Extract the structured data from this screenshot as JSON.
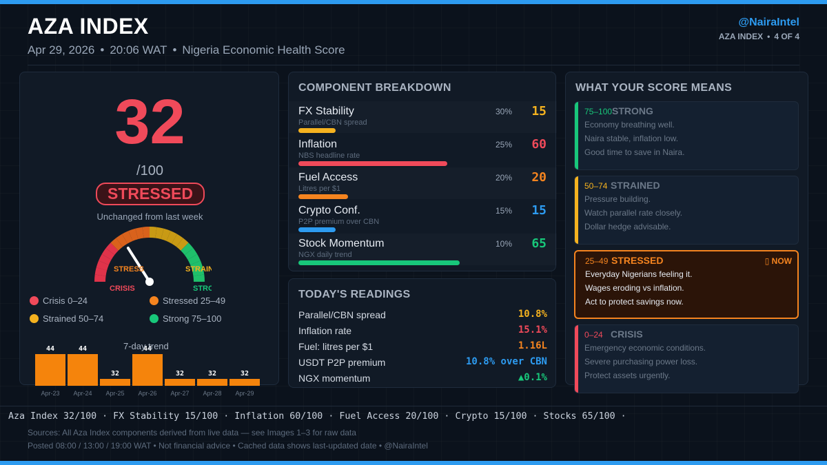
{
  "header": {
    "title": "AZA INDEX",
    "date": "Apr 29, 2026",
    "time": "20:06 WAT",
    "tagline": "Nigeria Economic Health Score",
    "handle": "@NairaIntel",
    "page_label": "AZA INDEX",
    "page_count": "4 OF 4"
  },
  "score_card": {
    "score": "32",
    "out_of": "/100",
    "status": "STRESSED",
    "change_note": "Unchanged from last week",
    "gauge": {
      "value": 32,
      "max": 100,
      "labels": [
        "STRESS",
        "STRAIN",
        "CRISIS",
        "STRONG"
      ],
      "colors": [
        "#e0334a",
        "#d9621c",
        "#c89a14",
        "#1fbf6b"
      ]
    },
    "legend": [
      {
        "label": "Crisis  0–24",
        "color": "#f04a5a"
      },
      {
        "label": "Stressed 25–49",
        "color": "#f5841f"
      },
      {
        "label": "Strained 50–74",
        "color": "#f5b21f"
      },
      {
        "label": "Strong  75–100",
        "color": "#18c77a"
      }
    ],
    "trend_title": "7-day trend"
  },
  "chart_data": {
    "type": "bar",
    "title": "7-day trend",
    "categories": [
      "Apr-23",
      "Apr-24",
      "Apr-25",
      "Apr-26",
      "Apr-27",
      "Apr-28",
      "Apr-29"
    ],
    "values": [
      44,
      44,
      32,
      44,
      32,
      32,
      32
    ],
    "ylim": [
      0,
      50
    ],
    "bar_color": "#f5840c"
  },
  "components": {
    "title": "COMPONENT BREAKDOWN",
    "rows": [
      {
        "name": "FX Stability",
        "sub": "Parallel/CBN spread",
        "weight": "30%",
        "score": "15",
        "value": 15,
        "color": "#f5b21f"
      },
      {
        "name": "Inflation",
        "sub": "NBS headline rate",
        "weight": "25%",
        "score": "60",
        "value": 60,
        "color": "#f04a5a"
      },
      {
        "name": "Fuel Access",
        "sub": "Litres per $1",
        "weight": "20%",
        "score": "20",
        "value": 20,
        "color": "#f5841f"
      },
      {
        "name": "Crypto Conf.",
        "sub": "P2P premium over CBN",
        "weight": "15%",
        "score": "15",
        "value": 15,
        "color": "#2d9bf0"
      },
      {
        "name": "Stock Momentum",
        "sub": "NGX daily trend",
        "weight": "10%",
        "score": "65",
        "value": 65,
        "color": "#18c77a"
      }
    ]
  },
  "readings": {
    "title": "TODAY'S READINGS",
    "rows": [
      {
        "label": "Parallel/CBN spread",
        "value": "10.8%",
        "color": "#f5b21f"
      },
      {
        "label": "Inflation rate",
        "value": "15.1%",
        "color": "#f04a5a"
      },
      {
        "label": "Fuel: litres per $1",
        "value": "1.16L",
        "color": "#f5841f"
      },
      {
        "label": "USDT P2P premium",
        "value": "10.8% over CBN",
        "color": "#2d9bf0"
      },
      {
        "label": "NGX momentum",
        "value": "▲0.1%",
        "color": "#18c77a"
      }
    ]
  },
  "meaning": {
    "title": "WHAT YOUR SCORE MEANS",
    "now_label": "▯ NOW",
    "tiers": [
      {
        "range": "75–100",
        "name": "STRONG",
        "color": "#18c77a",
        "lines": [
          "Economy breathing well.",
          "Naira stable, inflation low.",
          "Good time to save in Naira."
        ],
        "active": false
      },
      {
        "range": "50–74",
        "name": "STRAINED",
        "color": "#f5b21f",
        "lines": [
          "Pressure building.",
          "Watch parallel rate closely.",
          "Dollar hedge advisable."
        ],
        "active": false
      },
      {
        "range": "25–49",
        "name": "STRESSED",
        "color": "#f5841f",
        "lines": [
          "Everyday Nigerians feeling it.",
          "Wages eroding vs inflation.",
          "Act to protect savings now."
        ],
        "active": true
      },
      {
        "range": "0–24",
        "name": "CRISIS",
        "color": "#f04a5a",
        "lines": [
          "Emergency economic conditions.",
          "Severe purchasing power loss.",
          "Protect assets urgently."
        ],
        "active": false
      }
    ]
  },
  "footer": {
    "ticker": "Aza Index 32/100 · FX Stability 15/100 · Inflation 60/100 · Fuel Access 20/100 · Crypto 15/100 · Stocks 65/100 ·",
    "sources": "Sources: All Aza Index components derived from live data — see Images 1–3 for raw data",
    "posted": "Posted 08:00 / 13:00 / 19:00 WAT  •  Not financial advice  •  Cached data shows last-updated date  •  @NairaIntel"
  },
  "colors": {
    "accent": "#2d9bf0",
    "background": "#0b121c",
    "panel": "#111a26"
  }
}
